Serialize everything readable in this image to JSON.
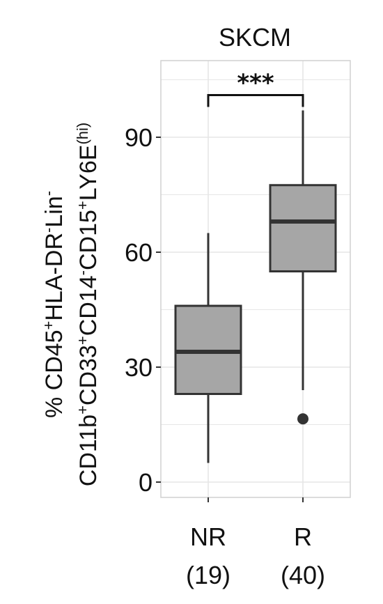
{
  "chart_data": {
    "type": "boxplot",
    "title": "SKCM",
    "ylabel": {
      "line1": [
        {
          "t": "% CD45"
        },
        {
          "t": "+",
          "sup": true
        },
        {
          "t": "HLA-DR"
        },
        {
          "t": "-",
          "sup": true
        },
        {
          "t": "Lin"
        },
        {
          "t": "-",
          "sup": true
        }
      ],
      "line2": [
        {
          "t": "CD11b"
        },
        {
          "t": "+",
          "sup": true
        },
        {
          "t": "CD33"
        },
        {
          "t": "+",
          "sup": true
        },
        {
          "t": "CD14"
        },
        {
          "t": "-",
          "sup": true
        },
        {
          "t": "CD15"
        },
        {
          "t": "+",
          "sup": true
        },
        {
          "t": "LY6E"
        },
        {
          "t": "(hi)",
          "sup": true
        }
      ]
    },
    "ylim": [
      -4,
      110
    ],
    "yticks": [
      0,
      30,
      60,
      90
    ],
    "grid": true,
    "categories": [
      {
        "name": "NR",
        "n": "(19)"
      },
      {
        "name": "R",
        "n": "(40)"
      }
    ],
    "boxes": [
      {
        "category": "NR",
        "whisker_low": 5,
        "q1": 23,
        "median": 34,
        "q3": 46,
        "whisker_high": 65,
        "outliers": []
      },
      {
        "category": "R",
        "whisker_low": 24,
        "q1": 55,
        "median": 68,
        "q3": 77.5,
        "whisker_high": 97,
        "outliers": [
          16.5
        ]
      }
    ],
    "significance": {
      "from": "NR",
      "to": "R",
      "label": "***",
      "y": 101
    },
    "colors": {
      "box_fill": "#a6a6a6",
      "box_stroke": "#333333",
      "grid": "#e6e6e6",
      "panel_border": "#d0d0d0"
    }
  }
}
